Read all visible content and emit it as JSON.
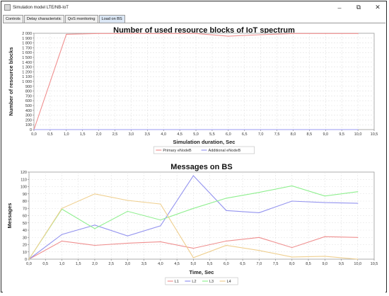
{
  "window": {
    "title": "Simulation model LTE/NB-IoT",
    "minimize": "–",
    "restore": "⧉",
    "close": "✕"
  },
  "tabs": [
    {
      "label": "Controls",
      "active": false
    },
    {
      "label": "Delay characteristic",
      "active": false
    },
    {
      "label": "QoS monitoring",
      "active": false
    },
    {
      "label": "Load on BS",
      "active": true
    }
  ],
  "colors": {
    "primary": "#f08f8f",
    "additional": "#9a9af0",
    "L1": "#ef8f8f",
    "L2": "#9494ef",
    "L3": "#8fef8f",
    "L4": "#efcf8f"
  },
  "chart_data": [
    {
      "type": "line",
      "title": "Number of used resource blocks of IoT spectrum",
      "xlabel": "Simulation duration, Sec",
      "ylabel": "Number of resource blocks",
      "xlim": [
        0,
        10.5
      ],
      "ylim": [
        0,
        2000
      ],
      "xticks": [
        "0,0",
        "0,5",
        "1,0",
        "1,5",
        "2,0",
        "2,5",
        "3,0",
        "3,5",
        "4,0",
        "4,5",
        "5,0",
        "5,5",
        "6,0",
        "6,5",
        "7,0",
        "7,5",
        "8,0",
        "8,5",
        "9,0",
        "9,5",
        "10,0",
        "10,5"
      ],
      "yticks": [
        "0",
        "100",
        "200",
        "300",
        "400",
        "500",
        "600",
        "700",
        "800",
        "900",
        "1 000",
        "1 100",
        "1 200",
        "1 300",
        "1 400",
        "1 500",
        "1 600",
        "1 700",
        "1 800",
        "1 900",
        "2 000"
      ],
      "grid": true,
      "legend_position": "bottom",
      "series": [
        {
          "name": "Primary eNodeB",
          "x": [
            0,
            1,
            2,
            3,
            4,
            5,
            6,
            7,
            8,
            9,
            10
          ],
          "values": [
            0,
            1980,
            1995,
            1995,
            1995,
            1995,
            1940,
            1970,
            1995,
            1995,
            1995
          ]
        },
        {
          "name": "Additional eNodeB",
          "x": [
            0,
            10
          ],
          "values": [
            0,
            0
          ]
        }
      ]
    },
    {
      "type": "line",
      "title": "Messages on BS",
      "xlabel": "Time, Sec",
      "ylabel": "Messages",
      "xlim": [
        0,
        10.5
      ],
      "ylim": [
        0,
        120
      ],
      "xticks": [
        "0,0",
        "0,5",
        "1,0",
        "1,5",
        "2,0",
        "2,5",
        "3,0",
        "3,5",
        "4,0",
        "4,5",
        "5,0",
        "5,5",
        "6,0",
        "6,5",
        "7,0",
        "7,5",
        "8,0",
        "8,5",
        "9,0",
        "9,5",
        "10,0",
        "10,5"
      ],
      "yticks": [
        "0",
        "10",
        "20",
        "30",
        "40",
        "50",
        "60",
        "70",
        "80",
        "90",
        "100",
        "110",
        "120"
      ],
      "grid": true,
      "legend_position": "bottom",
      "series": [
        {
          "name": "L1",
          "x": [
            0,
            1,
            2,
            3,
            4,
            5,
            6,
            7,
            8,
            9,
            10
          ],
          "values": [
            0,
            25,
            19,
            22,
            24,
            15,
            25,
            30,
            16,
            31,
            30
          ]
        },
        {
          "name": "L2",
          "x": [
            0,
            1,
            2,
            3,
            4,
            5,
            6,
            7,
            8,
            9,
            10
          ],
          "values": [
            0,
            34,
            47,
            32,
            46,
            115,
            67,
            64,
            80,
            78,
            77
          ]
        },
        {
          "name": "L3",
          "x": [
            0,
            1,
            2,
            3,
            4,
            5,
            6,
            7,
            8,
            9,
            10
          ],
          "values": [
            0,
            69,
            42,
            66,
            54,
            70,
            84,
            92,
            101,
            87,
            93
          ]
        },
        {
          "name": "L4",
          "x": [
            0,
            1,
            2,
            3,
            4,
            5,
            6,
            7,
            8,
            9,
            10
          ],
          "values": [
            0,
            70,
            90,
            81,
            76,
            2,
            19,
            12,
            3,
            4,
            0
          ]
        }
      ]
    }
  ]
}
